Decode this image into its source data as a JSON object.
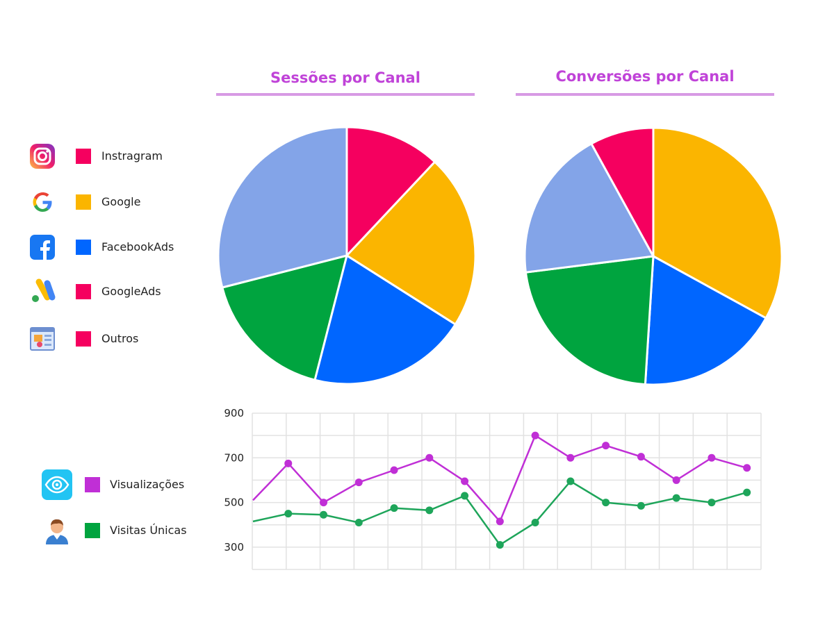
{
  "colors": {
    "instagram": "#f5005f",
    "google": "#fbb500",
    "facebookads": "#0066ff",
    "googleads": "#00a43f",
    "outros": "#83a4e8",
    "title": "#c043d8",
    "underline": "#d79ae4",
    "visualizacoes": "#c02fd6",
    "visitas": "#1ea55a",
    "grid": "#e2e2e2"
  },
  "legend_channels": [
    {
      "label": "Instragram",
      "icon": "instagram-icon",
      "swatch": "#f5005f"
    },
    {
      "label": "Google",
      "icon": "google-icon",
      "swatch": "#fbb500"
    },
    {
      "label": "FacebookAds",
      "icon": "facebook-icon",
      "swatch": "#0066ff"
    },
    {
      "label": "GoogleAds",
      "icon": "google-ads-icon",
      "swatch": "#f5005f"
    },
    {
      "label": "Outros",
      "icon": "other-channels-icon",
      "swatch": "#f5005f"
    }
  ],
  "legend_lines": [
    {
      "label": "Visualizações",
      "icon": "eye-icon",
      "swatch": "#c02fd6"
    },
    {
      "label": "Visitas Únicas",
      "icon": "user-icon",
      "swatch": "#00a43f"
    }
  ],
  "chart_data": [
    {
      "type": "pie",
      "title": "Sessões por Canal",
      "slices": [
        {
          "channel": "Instragram",
          "value": 12,
          "color": "#f5005f"
        },
        {
          "channel": "Google",
          "value": 22,
          "color": "#fbb500"
        },
        {
          "channel": "FacebookAds",
          "value": 20,
          "color": "#0066ff"
        },
        {
          "channel": "GoogleAds",
          "value": 17,
          "color": "#00a43f"
        },
        {
          "channel": "Outros",
          "value": 29,
          "color": "#83a4e8"
        }
      ]
    },
    {
      "type": "pie",
      "title": "Conversões por Canal",
      "slices": [
        {
          "channel": "Google",
          "value": 33,
          "color": "#fbb500"
        },
        {
          "channel": "FacebookAds",
          "value": 18,
          "color": "#0066ff"
        },
        {
          "channel": "GoogleAds",
          "value": 22,
          "color": "#00a43f"
        },
        {
          "channel": "Outros",
          "value": 19,
          "color": "#83a4e8"
        },
        {
          "channel": "Instragram",
          "value": 8,
          "color": "#f5005f"
        }
      ]
    },
    {
      "type": "line",
      "title": "",
      "xlabel": "",
      "ylabel": "",
      "ylim": [
        200,
        900
      ],
      "yticks": [
        300,
        500,
        700,
        900
      ],
      "grid": true,
      "x": [
        1,
        2,
        3,
        4,
        5,
        6,
        7,
        8,
        9,
        10,
        11,
        12,
        13,
        14,
        15
      ],
      "series": [
        {
          "name": "Visualizações",
          "color": "#c02fd6",
          "values": [
            510,
            675,
            500,
            590,
            645,
            700,
            595,
            415,
            800,
            700,
            755,
            705,
            600,
            700,
            655
          ]
        },
        {
          "name": "Visitas Únicas",
          "color": "#1ea55a",
          "values": [
            415,
            450,
            445,
            410,
            475,
            465,
            530,
            310,
            410,
            595,
            500,
            485,
            520,
            500,
            545
          ]
        }
      ]
    }
  ]
}
